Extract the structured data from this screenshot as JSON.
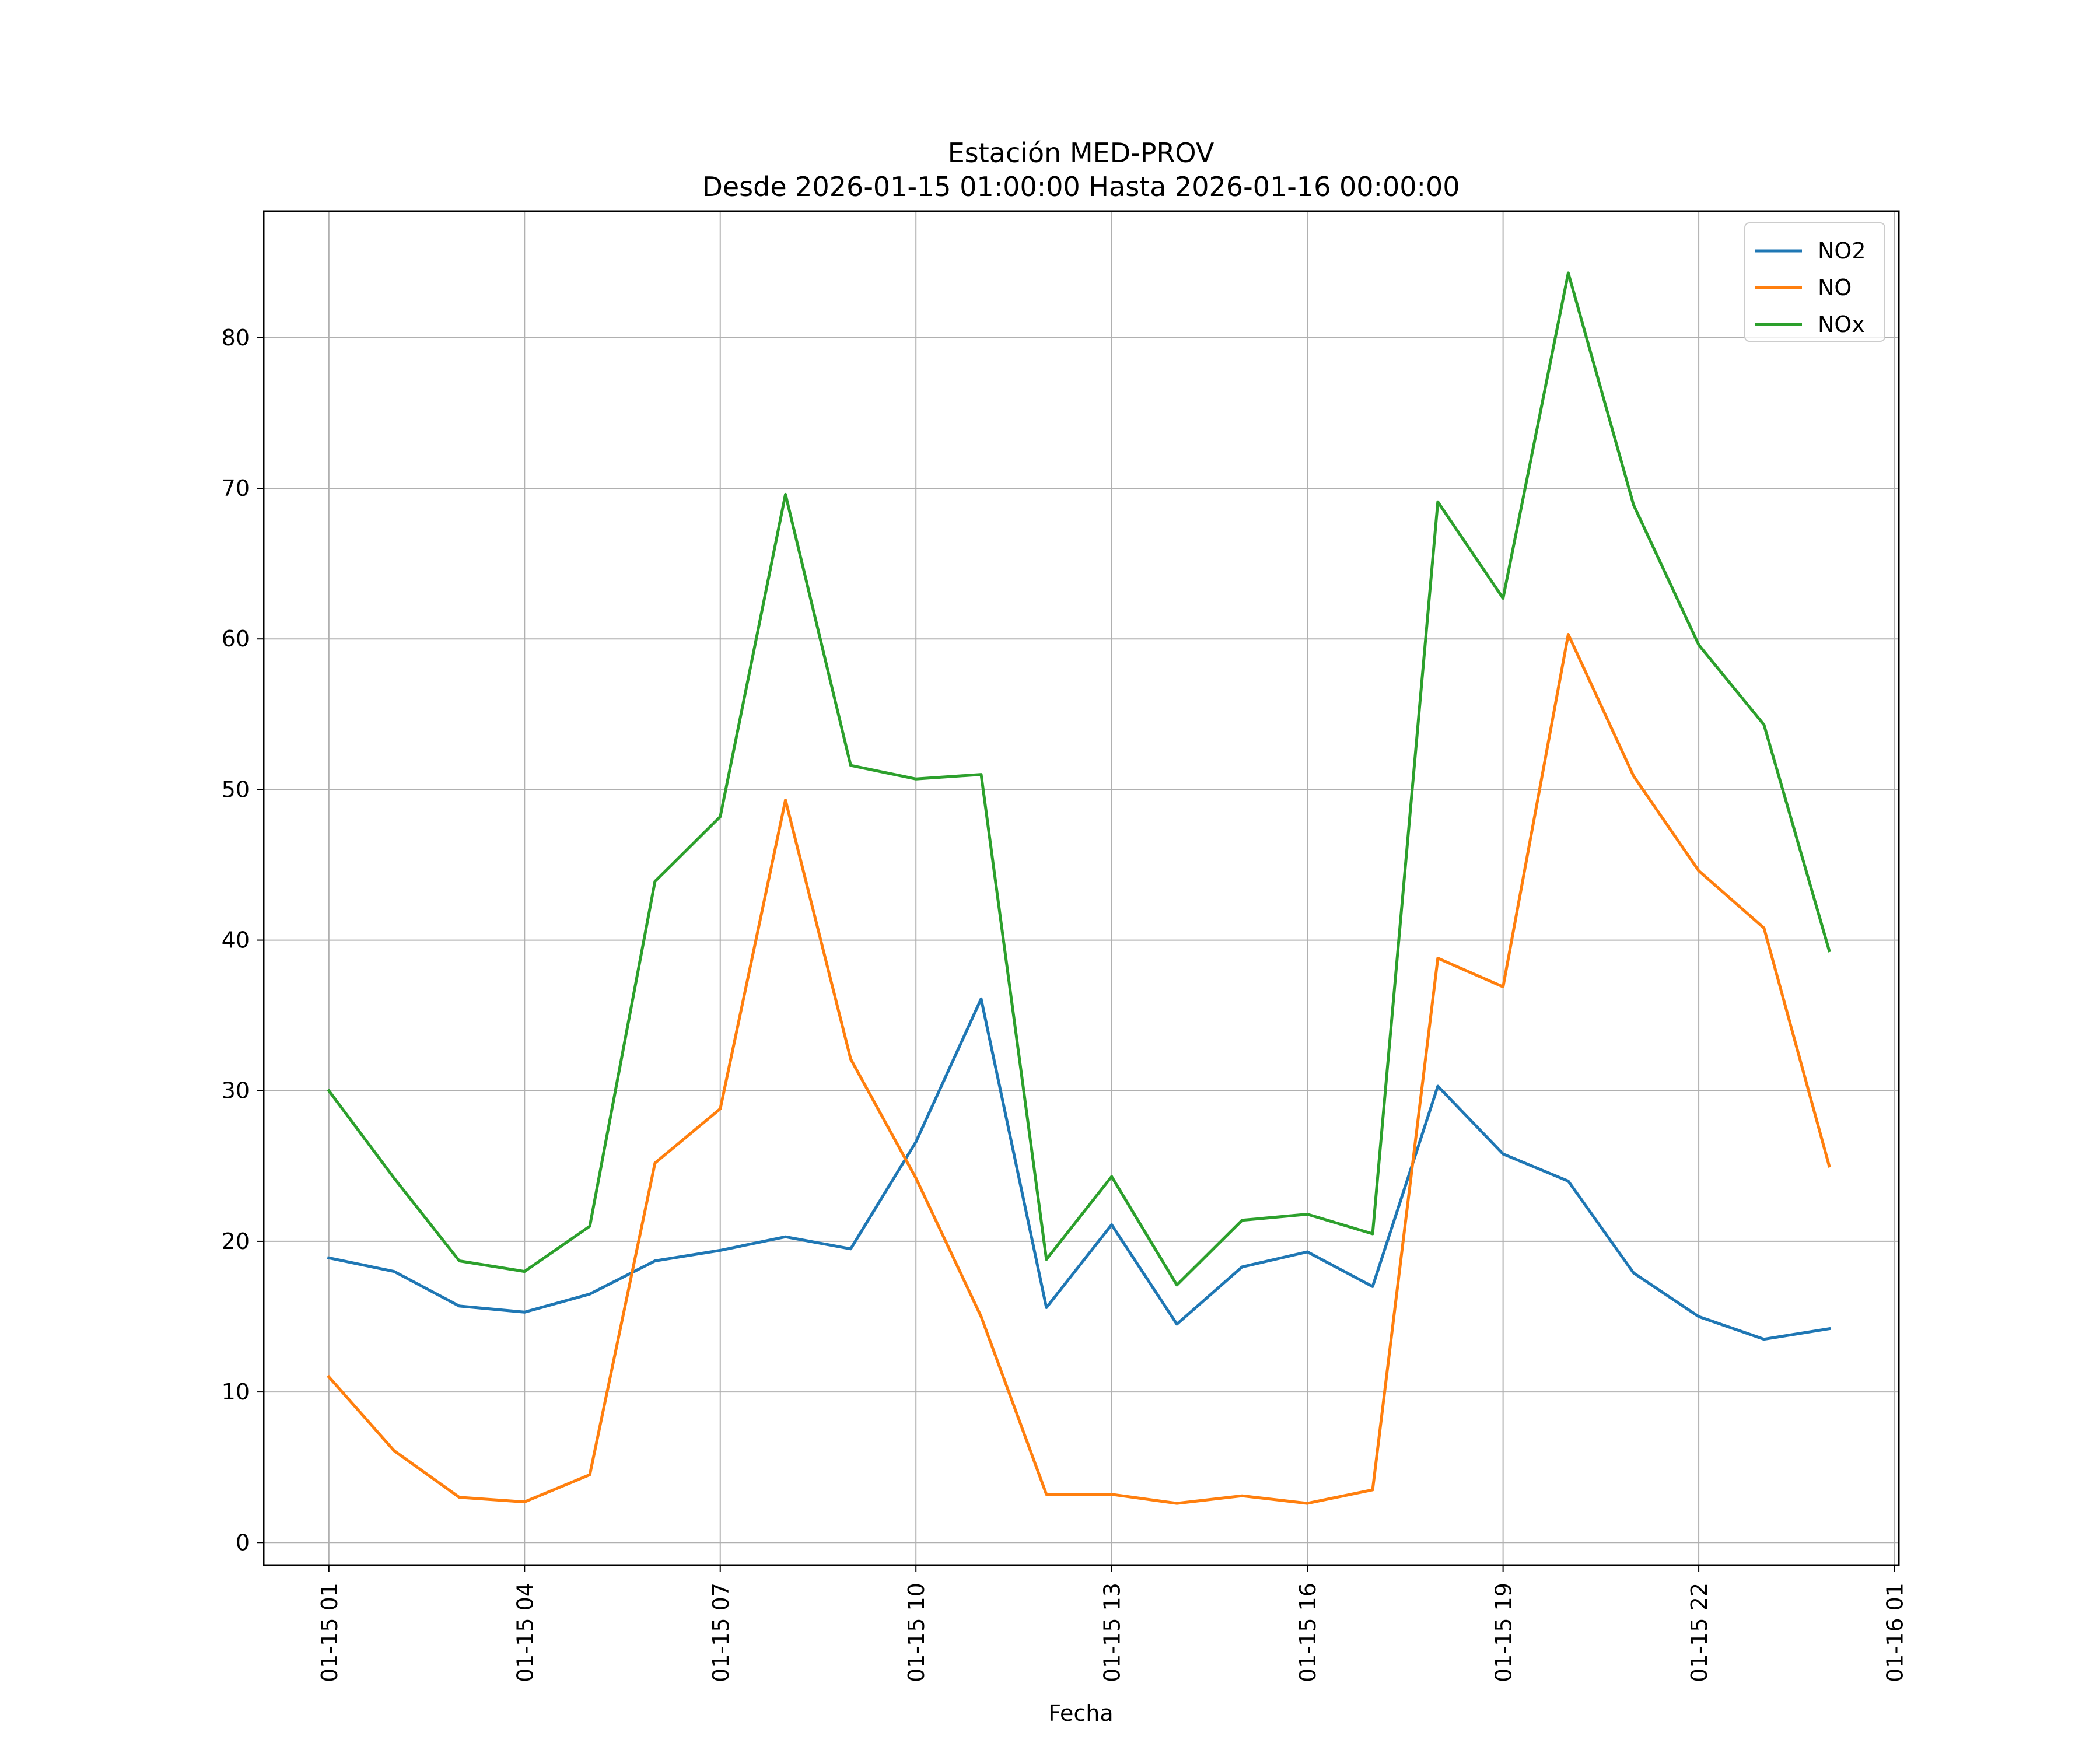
{
  "chart_data": {
    "type": "line",
    "title": "Estación MED-PROV",
    "subtitle": "Desde 2026-01-15 01:00:00 Hasta 2026-01-16 00:00:00",
    "xlabel": "Fecha",
    "ylabel": "",
    "x": [
      "2026-01-15 01:00",
      "2026-01-15 02:00",
      "2026-01-15 03:00",
      "2026-01-15 04:00",
      "2026-01-15 05:00",
      "2026-01-15 06:00",
      "2026-01-15 07:00",
      "2026-01-15 08:00",
      "2026-01-15 09:00",
      "2026-01-15 10:00",
      "2026-01-15 11:00",
      "2026-01-15 12:00",
      "2026-01-15 13:00",
      "2026-01-15 14:00",
      "2026-01-15 15:00",
      "2026-01-15 16:00",
      "2026-01-15 17:00",
      "2026-01-15 18:00",
      "2026-01-15 19:00",
      "2026-01-15 20:00",
      "2026-01-15 21:00",
      "2026-01-15 22:00",
      "2026-01-15 23:00",
      "2026-01-16 00:00"
    ],
    "x_range": [
      "2026-01-15 00:00",
      "2026-01-16 01:04"
    ],
    "x_ticks": [
      "2026-01-15 01:00",
      "2026-01-15 04:00",
      "2026-01-15 07:00",
      "2026-01-15 10:00",
      "2026-01-15 13:00",
      "2026-01-15 16:00",
      "2026-01-15 19:00",
      "2026-01-15 22:00",
      "2026-01-16 01:00"
    ],
    "x_tick_labels": [
      "01-15 01",
      "01-15 04",
      "01-15 07",
      "01-15 10",
      "01-15 13",
      "01-15 16",
      "01-15 19",
      "01-15 22",
      "01-16 01"
    ],
    "ylim": [
      -1.5,
      88.4
    ],
    "y_ticks": [
      0,
      10,
      20,
      30,
      40,
      50,
      60,
      70,
      80
    ],
    "grid": true,
    "legend_position": "top-right",
    "series": [
      {
        "name": "NO2",
        "color": "#1f77b4",
        "values": [
          18.9,
          18.0,
          15.7,
          15.3,
          16.5,
          18.7,
          19.4,
          20.3,
          19.5,
          26.6,
          36.1,
          15.6,
          21.1,
          14.5,
          18.3,
          19.3,
          17.0,
          30.3,
          25.8,
          24.0,
          17.9,
          15.0,
          13.5,
          14.2
        ]
      },
      {
        "name": "NO",
        "color": "#ff7f0e",
        "values": [
          11.0,
          6.1,
          3.0,
          2.7,
          4.5,
          25.2,
          28.8,
          49.3,
          32.1,
          24.2,
          15.0,
          3.2,
          3.2,
          2.6,
          3.1,
          2.6,
          3.5,
          38.8,
          36.9,
          60.3,
          50.9,
          44.6,
          40.8,
          25.0
        ]
      },
      {
        "name": "NOx",
        "color": "#2ca02c",
        "values": [
          30.0,
          24.2,
          18.7,
          18.0,
          21.0,
          43.9,
          48.2,
          69.6,
          51.6,
          50.7,
          51.0,
          18.8,
          24.3,
          17.1,
          21.4,
          21.8,
          20.5,
          69.1,
          62.7,
          84.3,
          68.9,
          59.6,
          54.3,
          39.3
        ]
      }
    ]
  }
}
